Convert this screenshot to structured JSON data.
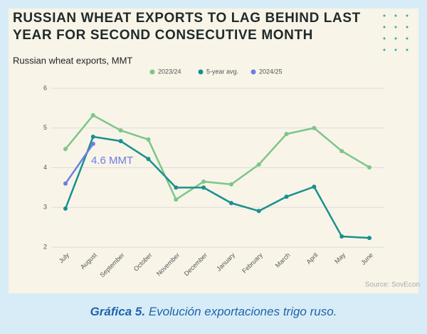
{
  "chart_data": {
    "type": "line",
    "title": "RUSSIAN WHEAT EXPORTS TO LAG BEHIND LAST YEAR FOR SECOND CONSECUTIVE MONTH",
    "subtitle": "Russian wheat exports, MMT",
    "categories": [
      "July",
      "August",
      "September",
      "October",
      "November",
      "December",
      "January",
      "February",
      "March",
      "April",
      "May",
      "June"
    ],
    "series": [
      {
        "name": "2023/24",
        "color": "#7cc68a",
        "values": [
          4.47,
          5.32,
          4.94,
          4.71,
          3.2,
          3.65,
          3.58,
          4.08,
          4.85,
          5.0,
          4.42,
          4.01
        ]
      },
      {
        "name": "5-year avg.",
        "color": "#19908e",
        "values": [
          2.97,
          4.78,
          4.67,
          4.22,
          3.5,
          3.5,
          3.11,
          2.91,
          3.27,
          3.52,
          2.27,
          2.23
        ]
      },
      {
        "name": "2024/25",
        "color": "#6a7fe0",
        "values": [
          3.6,
          4.6,
          null,
          null,
          null,
          null,
          null,
          null,
          null,
          null,
          null,
          null
        ]
      }
    ],
    "annotation": "4.6 MMT",
    "ylim": [
      2,
      6
    ],
    "yticks": [
      2,
      3,
      4,
      5,
      6
    ],
    "grid": true,
    "legend": "top",
    "source": "Source: SovEcon"
  },
  "caption": {
    "label": "Gráfica 5.",
    "text": "Evolución exportaciones trigo ruso."
  }
}
